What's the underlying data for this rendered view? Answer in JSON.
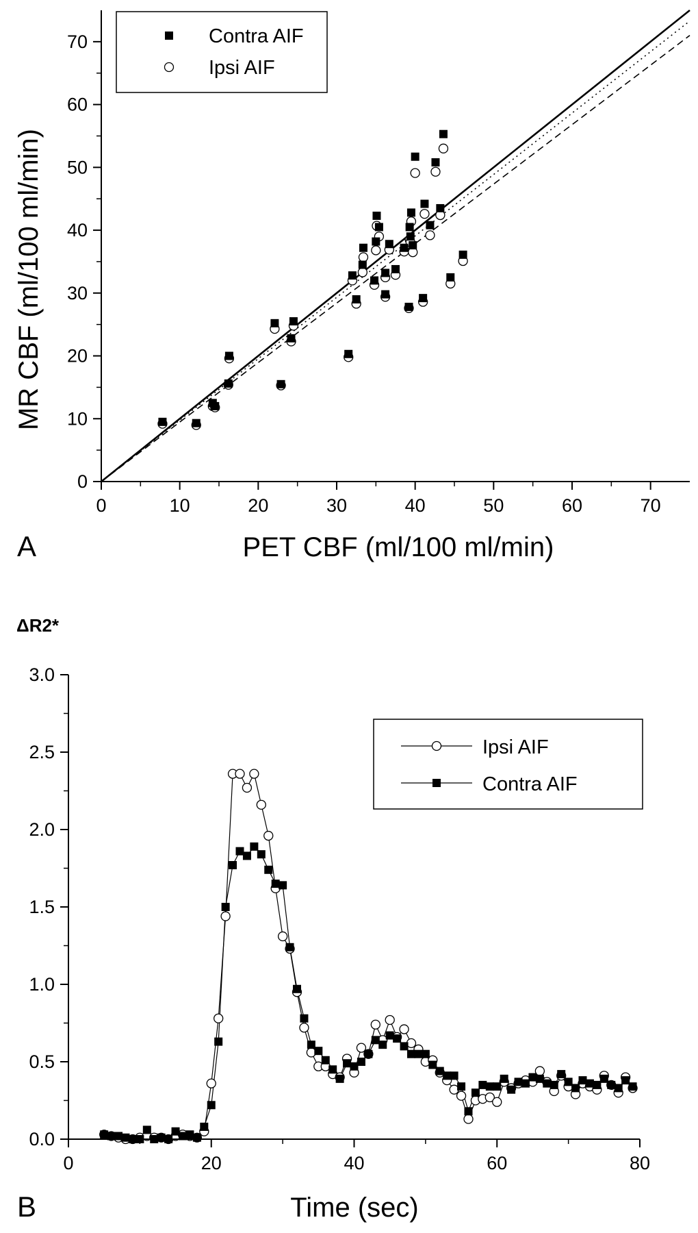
{
  "panel_a": {
    "letter": "A",
    "chart_data": {
      "type": "scatter",
      "xlabel": "PET CBF (ml/100 ml/min)",
      "ylabel": "MR CBF (ml/100 ml/min)",
      "xlim": [
        0,
        75
      ],
      "ylim": [
        0,
        75
      ],
      "xticks": [
        0,
        10,
        20,
        30,
        40,
        50,
        60,
        70
      ],
      "yticks": [
        0,
        10,
        20,
        30,
        40,
        50,
        60,
        70
      ],
      "legend_position": "top-left",
      "series": [
        {
          "name": "Contra AIF",
          "marker": "filled-square",
          "points": [
            [
              7.8,
              9.5
            ],
            [
              12.1,
              9.3
            ],
            [
              14.2,
              12.5
            ],
            [
              14.5,
              12.0
            ],
            [
              16.2,
              15.6
            ],
            [
              16.3,
              20.0
            ],
            [
              22.1,
              25.2
            ],
            [
              22.9,
              15.5
            ],
            [
              24.2,
              22.8
            ],
            [
              24.5,
              25.5
            ],
            [
              31.5,
              20.3
            ],
            [
              32.0,
              32.8
            ],
            [
              32.5,
              29.0
            ],
            [
              33.3,
              34.5
            ],
            [
              33.4,
              37.2
            ],
            [
              34.8,
              32.0
            ],
            [
              35.0,
              38.2
            ],
            [
              35.1,
              42.3
            ],
            [
              35.4,
              40.5
            ],
            [
              36.2,
              29.8
            ],
            [
              36.2,
              33.2
            ],
            [
              36.7,
              37.8
            ],
            [
              37.5,
              33.8
            ],
            [
              38.6,
              37.2
            ],
            [
              39.2,
              27.8
            ],
            [
              39.3,
              40.5
            ],
            [
              39.4,
              39.0
            ],
            [
              39.5,
              42.8
            ],
            [
              39.7,
              37.6
            ],
            [
              40.0,
              51.7
            ],
            [
              41.0,
              29.2
            ],
            [
              41.2,
              44.2
            ],
            [
              41.9,
              40.8
            ],
            [
              42.6,
              50.8
            ],
            [
              43.2,
              43.5
            ],
            [
              43.6,
              55.3
            ],
            [
              44.5,
              32.5
            ],
            [
              46.1,
              36.1
            ]
          ]
        },
        {
          "name": "Ipsi AIF",
          "marker": "open-circle",
          "points": [
            [
              7.8,
              9.2
            ],
            [
              12.1,
              9.0
            ],
            [
              14.2,
              12.0
            ],
            [
              14.5,
              11.8
            ],
            [
              16.2,
              15.4
            ],
            [
              16.3,
              19.6
            ],
            [
              22.1,
              24.3
            ],
            [
              22.9,
              15.3
            ],
            [
              24.2,
              22.3
            ],
            [
              24.5,
              24.8
            ],
            [
              31.5,
              19.8
            ],
            [
              32.0,
              32.0
            ],
            [
              32.5,
              28.3
            ],
            [
              33.3,
              33.3
            ],
            [
              33.4,
              35.7
            ],
            [
              34.8,
              31.3
            ],
            [
              35.0,
              36.8
            ],
            [
              35.1,
              40.7
            ],
            [
              35.4,
              39.0
            ],
            [
              36.2,
              29.4
            ],
            [
              36.2,
              32.5
            ],
            [
              36.7,
              36.9
            ],
            [
              37.5,
              32.9
            ],
            [
              38.6,
              36.6
            ],
            [
              39.2,
              27.6
            ],
            [
              39.3,
              38.5
            ],
            [
              39.4,
              38.1
            ],
            [
              39.5,
              41.4
            ],
            [
              39.7,
              36.5
            ],
            [
              40.0,
              49.1
            ],
            [
              41.0,
              28.6
            ],
            [
              41.2,
              42.6
            ],
            [
              41.9,
              39.2
            ],
            [
              42.6,
              49.3
            ],
            [
              43.2,
              42.4
            ],
            [
              43.6,
              53.0
            ],
            [
              44.5,
              31.5
            ],
            [
              46.1,
              35.1
            ]
          ]
        }
      ],
      "lines": [
        {
          "style": "solid",
          "x": [
            0,
            75
          ],
          "y": [
            0,
            75
          ]
        },
        {
          "style": "dotted",
          "x": [
            0,
            75
          ],
          "y": [
            0,
            73.3
          ]
        },
        {
          "style": "dashed",
          "x": [
            0,
            75
          ],
          "y": [
            0,
            71.0
          ]
        }
      ]
    }
  },
  "panel_b": {
    "letter": "B",
    "title": "ΔR2*",
    "chart_data": {
      "type": "line",
      "xlabel": "Time (sec)",
      "ylabel": "",
      "xlim": [
        0,
        80
      ],
      "ylim": [
        0,
        3.0
      ],
      "xticks": [
        0,
        20,
        40,
        60,
        80
      ],
      "yticks": [
        0.0,
        0.5,
        1.0,
        1.5,
        2.0,
        2.5,
        3.0
      ],
      "legend_position": "top-right",
      "series": [
        {
          "name": "Ipsi AIF",
          "marker": "open-circle",
          "x": [
            5,
            6,
            7,
            8,
            9,
            10,
            11,
            12,
            13,
            14,
            15,
            16,
            17,
            18,
            19,
            20,
            21,
            22,
            23,
            24,
            25,
            26,
            27,
            28,
            29,
            30,
            31,
            32,
            33,
            34,
            35,
            36,
            37,
            38,
            39,
            40,
            41,
            42,
            43,
            44,
            45,
            46,
            47,
            48,
            49,
            50,
            51,
            52,
            53,
            54,
            55,
            56,
            57,
            58,
            59,
            60,
            61,
            62,
            63,
            64,
            65,
            66,
            67,
            68,
            69,
            70,
            71,
            72,
            73,
            74,
            75,
            76,
            77,
            78,
            79
          ],
          "y": [
            0.03,
            0.02,
            0.01,
            0.0,
            0.0,
            0.01,
            0.02,
            0.01,
            0.01,
            0.0,
            0.02,
            0.03,
            0.02,
            0.01,
            0.05,
            0.36,
            0.78,
            1.44,
            2.36,
            2.36,
            2.27,
            2.36,
            2.16,
            1.96,
            1.62,
            1.31,
            1.23,
            0.95,
            0.72,
            0.56,
            0.47,
            0.47,
            0.42,
            0.4,
            0.52,
            0.43,
            0.59,
            0.55,
            0.74,
            0.64,
            0.77,
            0.66,
            0.71,
            0.62,
            0.58,
            0.5,
            0.51,
            0.43,
            0.38,
            0.32,
            0.28,
            0.13,
            0.25,
            0.26,
            0.27,
            0.24,
            0.37,
            0.33,
            0.36,
            0.38,
            0.37,
            0.44,
            0.37,
            0.31,
            0.41,
            0.34,
            0.29,
            0.36,
            0.34,
            0.32,
            0.41,
            0.35,
            0.3,
            0.4,
            0.33
          ]
        },
        {
          "name": "Contra AIF",
          "marker": "filled-square",
          "x": [
            5,
            6,
            7,
            8,
            9,
            10,
            11,
            12,
            13,
            14,
            15,
            16,
            17,
            18,
            19,
            20,
            21,
            22,
            23,
            24,
            25,
            26,
            27,
            28,
            29,
            30,
            31,
            32,
            33,
            34,
            35,
            36,
            37,
            38,
            39,
            40,
            41,
            42,
            43,
            44,
            45,
            46,
            47,
            48,
            49,
            50,
            51,
            52,
            53,
            54,
            55,
            56,
            57,
            58,
            59,
            60,
            61,
            62,
            63,
            64,
            65,
            66,
            67,
            68,
            69,
            70,
            71,
            72,
            73,
            74,
            75,
            76,
            77,
            78,
            79
          ],
          "y": [
            0.03,
            0.02,
            0.02,
            0.01,
            0.0,
            0.0,
            0.06,
            0.0,
            0.01,
            0.0,
            0.05,
            0.02,
            0.03,
            0.01,
            0.08,
            0.22,
            0.63,
            1.5,
            1.77,
            1.86,
            1.83,
            1.89,
            1.84,
            1.74,
            1.65,
            1.64,
            1.24,
            0.97,
            0.78,
            0.61,
            0.57,
            0.51,
            0.45,
            0.39,
            0.49,
            0.47,
            0.5,
            0.55,
            0.64,
            0.61,
            0.67,
            0.65,
            0.6,
            0.55,
            0.55,
            0.55,
            0.48,
            0.44,
            0.41,
            0.41,
            0.34,
            0.18,
            0.3,
            0.35,
            0.34,
            0.34,
            0.39,
            0.32,
            0.37,
            0.36,
            0.4,
            0.39,
            0.36,
            0.35,
            0.42,
            0.37,
            0.33,
            0.38,
            0.36,
            0.35,
            0.39,
            0.35,
            0.33,
            0.38,
            0.34
          ]
        }
      ]
    }
  }
}
